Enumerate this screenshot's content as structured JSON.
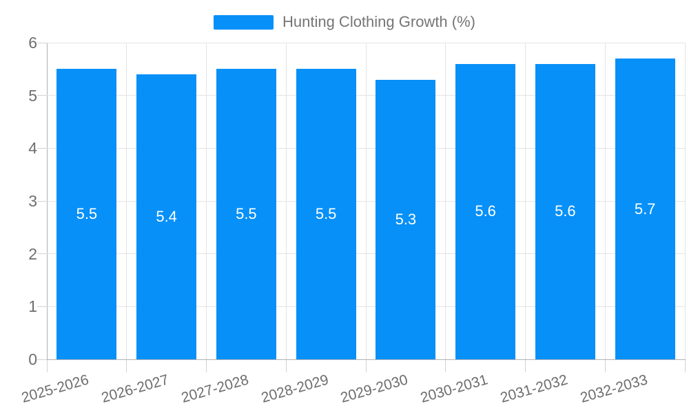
{
  "legend": {
    "label": "Hunting Clothing Growth (%)"
  },
  "colors": {
    "bar": "#0790f8",
    "grid": "#e3e3e3",
    "axis": "#b1b1b1",
    "tick": "#d2d2d2",
    "axis_label_text": "#6e6e6e",
    "legend_text": "#757575",
    "value_label_text": "#ffffff",
    "background": "#ffffff"
  },
  "chart_data": {
    "type": "bar",
    "title": "",
    "legend_entries": [
      "Hunting Clothing Growth (%)"
    ],
    "legend_position": "top-center",
    "categories": [
      "2025-2026",
      "2026-2027",
      "2027-2028",
      "2028-2029",
      "2029-2030",
      "2030-2031",
      "2031-2032",
      "2032-2033"
    ],
    "values": [
      5.5,
      5.4,
      5.5,
      5.5,
      5.3,
      5.6,
      5.6,
      5.7
    ],
    "value_labels": [
      "5.5",
      "5.4",
      "5.5",
      "5.5",
      "5.3",
      "5.6",
      "5.6",
      "5.7"
    ],
    "xlabel": "",
    "ylabel": "",
    "ylim": [
      0,
      6
    ],
    "yticks": [
      0,
      1,
      2,
      3,
      4,
      5,
      6
    ],
    "grid": true,
    "bar_labels_visible": true
  }
}
